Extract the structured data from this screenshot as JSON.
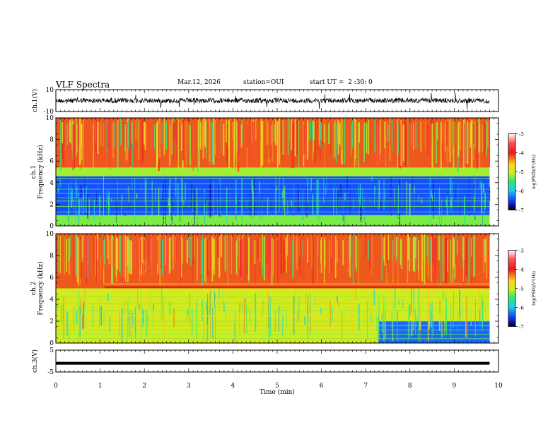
{
  "header": {
    "title": "VLF Spectra",
    "date": "Mar.12, 2026",
    "station": "station=OUI",
    "start_ut": "start UT =  2 :30: 0"
  },
  "chart_data": [
    {
      "type": "line",
      "title": "ch.1 waveform",
      "ylabel": "ch.1(V)",
      "ylim": [
        -10,
        10
      ],
      "yticks": [
        "10",
        "-10"
      ],
      "xlim": [
        0,
        10
      ]
    },
    {
      "type": "heatmap",
      "title": "ch.1 spectrogram",
      "ylabel": "ch.1 Frequency (kHz)",
      "ylabel_lines": [
        "ch.1",
        "Frequency (kHz)"
      ],
      "ylim": [
        0,
        10
      ],
      "yticks": [
        "0",
        "2",
        "4",
        "6",
        "8",
        "10"
      ],
      "xlim": [
        0,
        10
      ],
      "data_end_min": 9.8,
      "colorbar": {
        "label": "log(PSD)(V²/Hz)",
        "range": [
          -7,
          -3
        ],
        "ticks": [
          "-3",
          "-4",
          "-5",
          "-6",
          "-7"
        ]
      },
      "bands": [
        {
          "from_khz": 0.0,
          "to_khz": 1.0,
          "log_psd": -5.3
        },
        {
          "from_khz": 1.0,
          "to_khz": 4.6,
          "log_psd": -6.4
        },
        {
          "from_khz": 4.6,
          "to_khz": 5.4,
          "log_psd": -5.2
        },
        {
          "from_khz": 5.4,
          "to_khz": 10.0,
          "log_psd": -4.2
        }
      ]
    },
    {
      "type": "heatmap",
      "title": "ch.2 spectrogram",
      "ylabel": "ch.2 Frequency (kHz)",
      "ylabel_lines": [
        "ch.2",
        "Frequency (kHz)"
      ],
      "ylim": [
        0,
        10
      ],
      "yticks": [
        "0",
        "2",
        "4",
        "6",
        "8",
        "10"
      ],
      "xlim": [
        0,
        10
      ],
      "data_end_min": 9.8,
      "colorbar": {
        "label": "log(PSD)(V²/Hz)",
        "range": [
          -7,
          -3
        ],
        "ticks": [
          "-3",
          "-4",
          "-5",
          "-6",
          "-7"
        ]
      },
      "bands": [
        {
          "from_khz": 0.0,
          "to_khz": 3.0,
          "log_psd": -5.0
        },
        {
          "from_khz": 3.0,
          "to_khz": 5.0,
          "log_psd": -5.0
        },
        {
          "from_khz": 5.0,
          "to_khz": 10.0,
          "log_psd": -4.2
        }
      ],
      "emission_line_khz": 5.1,
      "secondary_line_khz": 2.5,
      "quiet_region": {
        "from_min": 7.3,
        "to_min": 9.8,
        "from_khz": 0.0,
        "to_khz": 2.0,
        "log_psd": -6.3
      }
    },
    {
      "type": "line",
      "title": "ch.3 waveform",
      "ylabel": "ch.3(V)",
      "ylim": [
        -5,
        5
      ],
      "yticks": [
        "5",
        "-5"
      ],
      "constant_value": -1.0,
      "xlabel": "Time (min)",
      "xlim": [
        0,
        10
      ],
      "xticks": [
        "0",
        "1",
        "2",
        "3",
        "4",
        "5",
        "6",
        "7",
        "8",
        "9",
        "10"
      ]
    }
  ]
}
